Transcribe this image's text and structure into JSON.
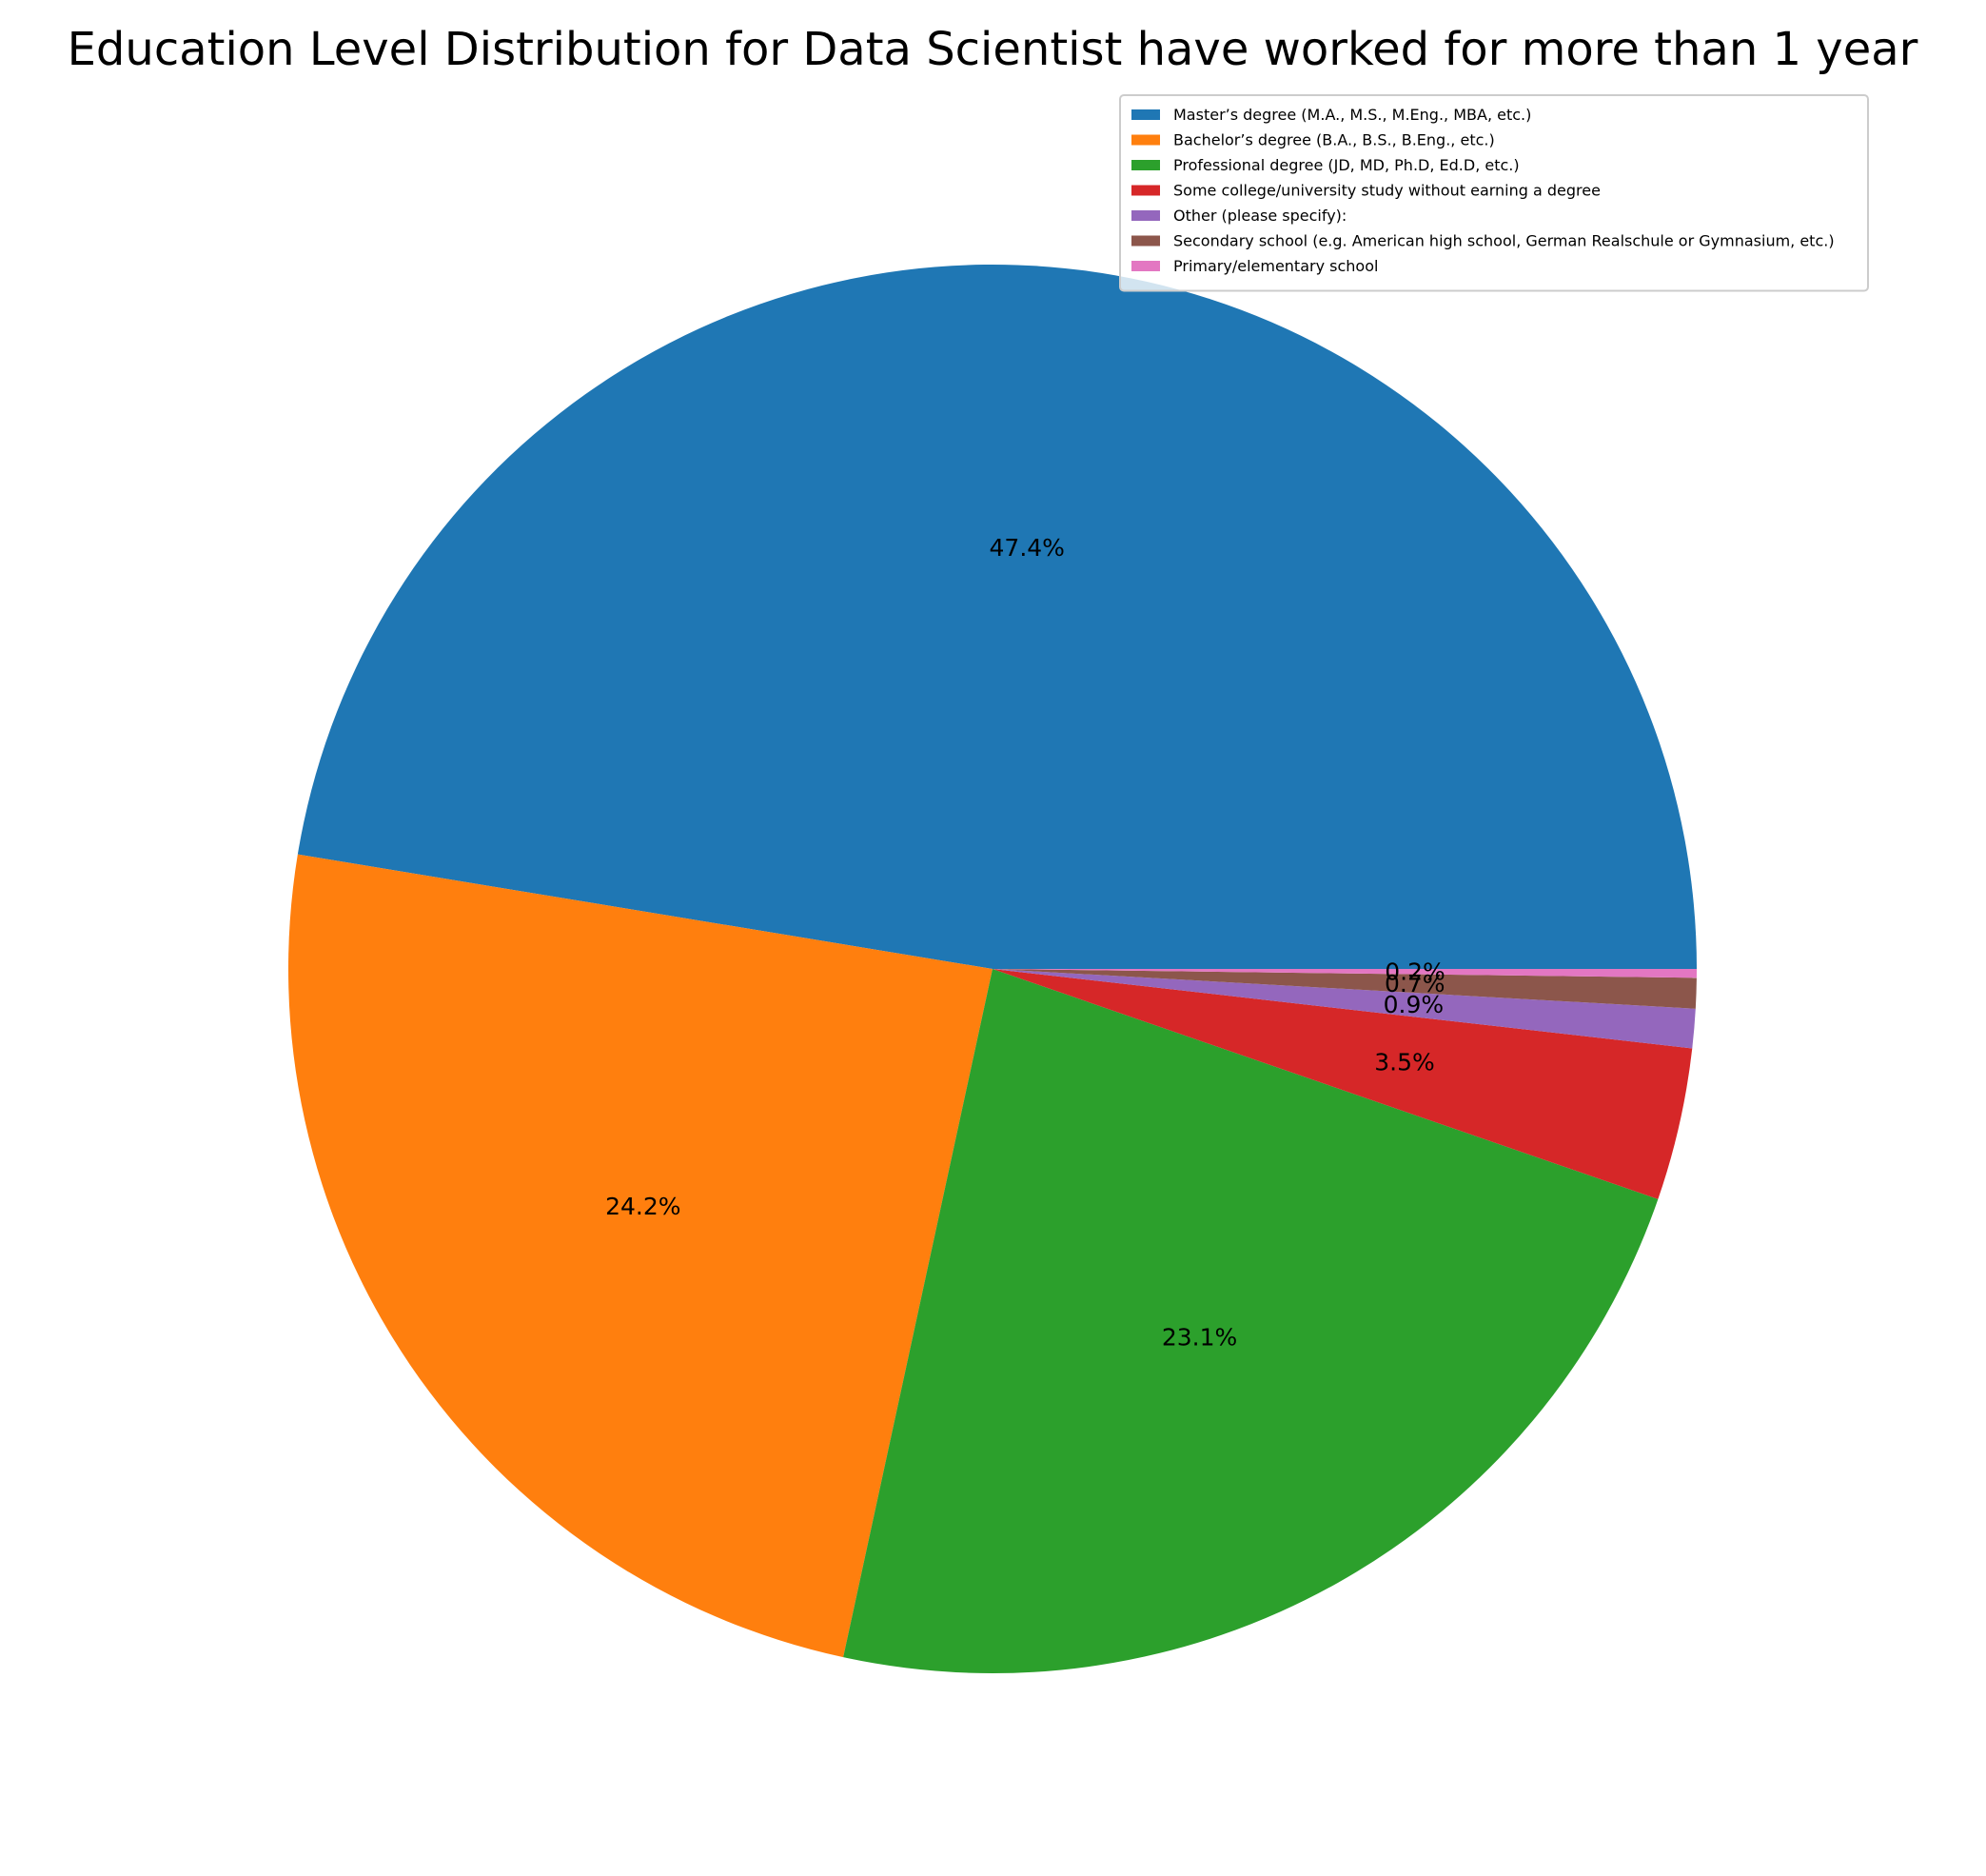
{
  "chart_data": {
    "type": "pie",
    "title": "Education Level Distribution for Data Scientist have worked for more than 1 year",
    "start_angle_deg": 0,
    "direction": "counterclockwise",
    "legend_position": "top-right",
    "slices": [
      {
        "label": "Master’s degree (M.A., M.S., M.Eng., MBA, etc.)",
        "value": 47.4,
        "display": "47.4%",
        "color": "#1f77b4"
      },
      {
        "label": "Bachelor’s degree (B.A., B.S., B.Eng., etc.)",
        "value": 24.2,
        "display": "24.2%",
        "color": "#ff7f0e"
      },
      {
        "label": "Professional degree (JD, MD, Ph.D, Ed.D, etc.)",
        "value": 23.1,
        "display": "23.1%",
        "color": "#2ca02c"
      },
      {
        "label": "Some college/university study without earning a degree",
        "value": 3.5,
        "display": "3.5%",
        "color": "#d62728"
      },
      {
        "label": "Other (please specify):",
        "value": 0.9,
        "display": "0.9%",
        "color": "#9467bd"
      },
      {
        "label": "Secondary school (e.g. American high school, German Realschule or Gymnasium, etc.)",
        "value": 0.7,
        "display": "0.7%",
        "color": "#8c564b"
      },
      {
        "label": "Primary/elementary school",
        "value": 0.2,
        "display": "0.2%",
        "color": "#e377c2"
      }
    ]
  }
}
